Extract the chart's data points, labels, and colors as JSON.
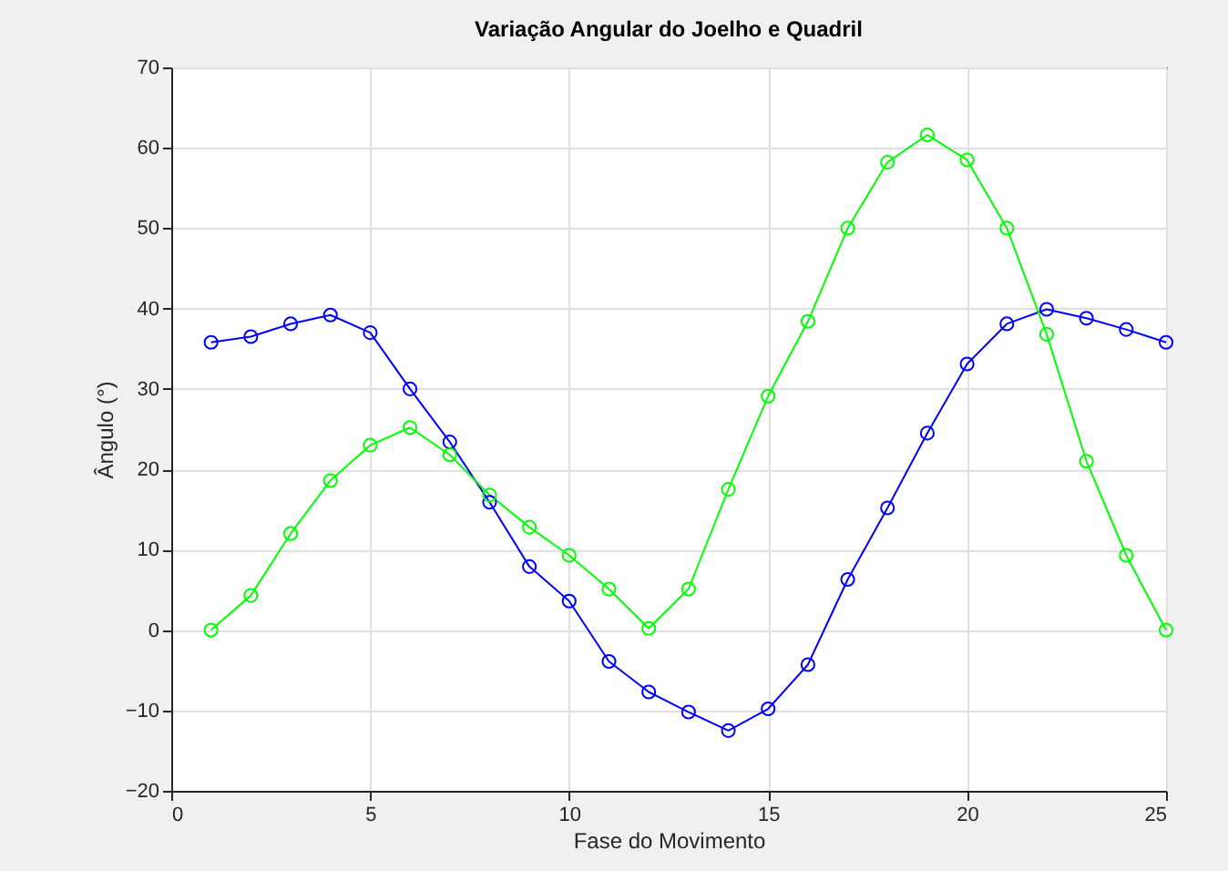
{
  "chart_data": {
    "type": "line",
    "title": "Variação Angular do Joelho e Quadril",
    "xlabel": "Fase do Movimento",
    "ylabel": "Ângulo (°)",
    "x": [
      1,
      2,
      3,
      4,
      5,
      6,
      7,
      8,
      9,
      10,
      11,
      12,
      13,
      14,
      15,
      16,
      17,
      18,
      19,
      20,
      21,
      22,
      23,
      24,
      25
    ],
    "series": [
      {
        "color": "#0000ff",
        "values": [
          35.8,
          36.5,
          38.1,
          39.2,
          37,
          30,
          23.4,
          15.9,
          7.9,
          3.6,
          -3.9,
          -7.7,
          -10.2,
          -12.5,
          -9.8,
          -4.3,
          6.3,
          15.2,
          24.5,
          33.1,
          38.1,
          39.9,
          38.8,
          37.4,
          35.8
        ]
      },
      {
        "color": "#00ff00",
        "values": [
          0,
          4.3,
          12,
          18.6,
          23,
          25.2,
          21.8,
          16.8,
          12.8,
          9.3,
          5.1,
          0.2,
          5.1,
          17.5,
          29.1,
          38.4,
          50,
          58.2,
          61.6,
          58.5,
          50,
          36.8,
          21,
          9.3,
          0
        ]
      }
    ],
    "xlim": [
      0,
      25
    ],
    "xticks": [
      0,
      5,
      10,
      15,
      20,
      25
    ],
    "ylim": [
      -20,
      70
    ],
    "yticks": [
      -20,
      -10,
      0,
      10,
      20,
      30,
      40,
      50,
      60,
      70
    ],
    "grid": true,
    "marker": "circle",
    "line_style": "solid",
    "legend": false
  }
}
